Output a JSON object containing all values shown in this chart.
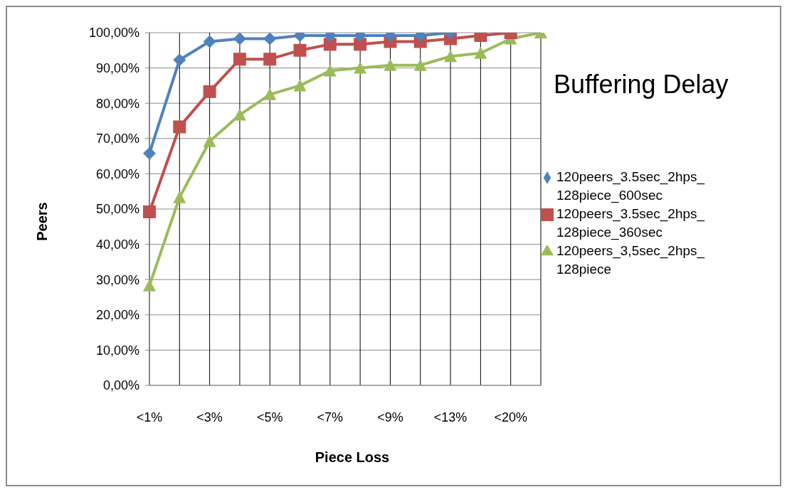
{
  "chart_data": {
    "type": "line",
    "title": "Buffering Delay",
    "xlabel": "Piece Loss",
    "ylabel": "Peers",
    "categories": [
      "<1%",
      null,
      "<3%",
      null,
      "<5%",
      null,
      "<7%",
      null,
      "<9%",
      null,
      "<13%",
      null,
      "<20%",
      null
    ],
    "series": [
      {
        "name": "120peers_3.5sec_2hps_128piece_600sec",
        "color": "#4f81bd",
        "marker": "diamond",
        "values": [
          65.8,
          92.3,
          97.5,
          98.3,
          98.3,
          99.2,
          99.2,
          99.2,
          99.2,
          99.2,
          100,
          null,
          null,
          null
        ]
      },
      {
        "name": "120peers_3.5sec_2hps_128piece_360sec",
        "color": "#c0504d",
        "marker": "square",
        "values": [
          49.2,
          73.3,
          83.3,
          92.5,
          92.5,
          95,
          96.7,
          96.7,
          97.5,
          97.5,
          98.3,
          99.2,
          100,
          null
        ]
      },
      {
        "name": "120peers_3,5sec_2hps_128piece",
        "color": "#9bbb59",
        "marker": "triangle",
        "values": [
          28.3,
          53.3,
          69.2,
          76.7,
          82.5,
          85,
          89.2,
          90,
          90.8,
          90.8,
          93.3,
          94.2,
          98.3,
          100
        ]
      }
    ],
    "ylim": [
      0,
      100
    ],
    "yticks": [
      {
        "value": 0,
        "label": "0,00%"
      },
      {
        "value": 10,
        "label": "10,00%"
      },
      {
        "value": 20,
        "label": "20,00%"
      },
      {
        "value": 30,
        "label": "30,00%"
      },
      {
        "value": 40,
        "label": "40,00%"
      },
      {
        "value": 50,
        "label": "50,00%"
      },
      {
        "value": 60,
        "label": "60,00%"
      },
      {
        "value": 70,
        "label": "70,00%"
      },
      {
        "value": 80,
        "label": "80,00%"
      },
      {
        "value": 90,
        "label": "90,00%"
      },
      {
        "value": 100,
        "label": "100,00%"
      }
    ],
    "grid": true,
    "legend": "right",
    "line_style": "solid"
  }
}
